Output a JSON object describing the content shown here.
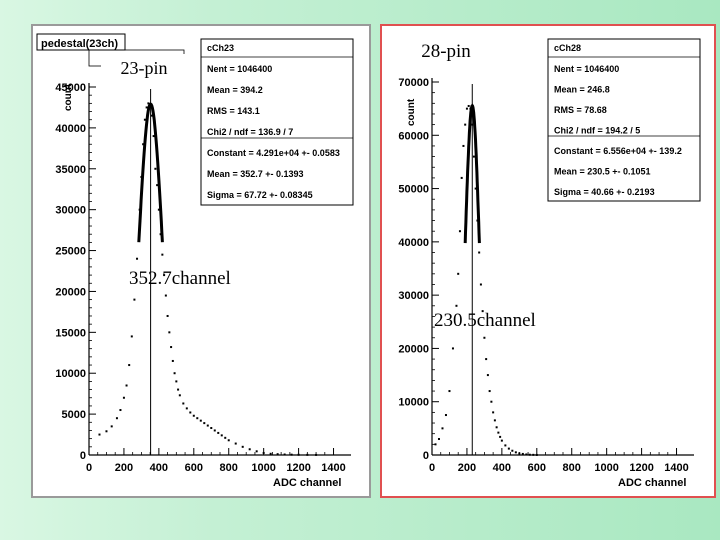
{
  "left": {
    "hist_title": "pedestal(23ch)",
    "count_label": "count",
    "pin_label": "23-pin",
    "peak_label": "352.7channel",
    "stats": {
      "title": "cCh23",
      "rows": [
        "Nent = 1046400",
        "Mean = 394.2",
        "RMS = 143.1",
        "Chi2 / ndf = 136.9 / 7",
        "Constant = 4.291e+04 +- 0.0583",
        "Mean = 352.7 +- 0.1393",
        "Sigma = 67.72 +- 0.08345"
      ]
    }
  },
  "right": {
    "count_label": "count",
    "pin_label": "28-pin",
    "peak_label": "230.5channel",
    "stats": {
      "title": "cCh28",
      "rows": [
        "Nent = 1046400",
        "Mean = 246.8",
        "RMS = 78.68",
        "Chi2 / ndf = 194.2 / 5",
        "Constant = 6.556e+04 +- 139.2",
        "Mean = 230.5 +- 0.1051",
        "Sigma = 40.66 +- 0.2193"
      ]
    }
  },
  "chart_data": [
    {
      "type": "scatter",
      "title": "pedestal(23ch)",
      "xlabel": "ADC channel",
      "ylabel": "count",
      "xlim": [
        0,
        1500
      ],
      "ylim": [
        0,
        45000
      ],
      "x_ticks": [
        0,
        200,
        400,
        600,
        800,
        1000,
        1200,
        1400
      ],
      "x_tick_labels": [
        "0",
        "200",
        "400",
        "600",
        "800",
        "1000",
        "1200",
        "1400"
      ],
      "y_ticks": [
        0,
        5000,
        10000,
        15000,
        20000,
        25000,
        30000,
        35000,
        40000,
        45000
      ],
      "y_tick_labels": [
        "0",
        "5000",
        "10000",
        "15000",
        "20000",
        "25000",
        "30000",
        "35000",
        "40000",
        "45000"
      ],
      "marker_x": 352.7,
      "gauss": {
        "constant": 42910,
        "mean": 352.7,
        "sigma": 67.72
      },
      "series": [
        {
          "x": [
            60,
            100,
            130,
            160,
            180,
            200,
            215,
            230,
            245,
            260,
            275,
            290,
            300,
            310,
            320,
            330,
            340,
            350,
            360,
            370,
            380,
            390,
            400,
            410,
            420,
            430,
            440,
            450,
            460,
            470,
            480,
            490,
            500,
            510,
            520,
            540,
            560,
            580,
            600,
            620,
            640,
            660,
            680,
            700,
            720,
            740,
            760,
            780,
            800,
            840,
            880,
            920,
            960,
            1000,
            1040,
            1080,
            1120,
            1160,
            1200,
            1250,
            1300
          ],
          "y": [
            2500,
            2900,
            3500,
            4500,
            5500,
            7000,
            8500,
            11000,
            14500,
            19000,
            24000,
            30000,
            34000,
            38000,
            41000,
            42500,
            43000,
            42800,
            41500,
            39000,
            35000,
            33000,
            30000,
            27000,
            24500,
            22000,
            19500,
            17000,
            15000,
            13200,
            11500,
            10000,
            9000,
            8000,
            7300,
            6300,
            5700,
            5200,
            4800,
            4500,
            4200,
            3900,
            3600,
            3300,
            3000,
            2700,
            2400,
            2100,
            1800,
            1400,
            1000,
            700,
            450,
            250,
            150,
            100,
            60,
            40,
            30,
            20,
            10
          ]
        }
      ]
    },
    {
      "type": "scatter",
      "title": "",
      "xlabel": "ADC channel",
      "ylabel": "count",
      "xlim": [
        0,
        1500
      ],
      "ylim": [
        0,
        70000
      ],
      "x_ticks": [
        0,
        200,
        400,
        600,
        800,
        1000,
        1200,
        1400
      ],
      "x_tick_labels": [
        "0",
        "200",
        "400",
        "600",
        "800",
        "1000",
        "1200",
        "1400"
      ],
      "y_ticks": [
        0,
        10000,
        20000,
        30000,
        40000,
        50000,
        60000,
        70000
      ],
      "y_tick_labels": [
        "0",
        "10000",
        "20000",
        "30000",
        "40000",
        "50000",
        "60000",
        "70000"
      ],
      "marker_x": 230.5,
      "gauss": {
        "constant": 65560,
        "mean": 230.5,
        "sigma": 40.66
      },
      "series": [
        {
          "x": [
            20,
            40,
            60,
            80,
            100,
            120,
            140,
            150,
            160,
            170,
            180,
            190,
            200,
            210,
            220,
            230,
            240,
            250,
            260,
            270,
            280,
            290,
            300,
            310,
            320,
            330,
            340,
            350,
            360,
            370,
            380,
            390,
            400,
            420,
            440,
            460,
            480,
            500,
            520,
            540,
            560,
            580,
            600
          ],
          "y": [
            2000,
            3000,
            5000,
            7500,
            12000,
            20000,
            28000,
            34000,
            42000,
            52000,
            58000,
            62000,
            65000,
            65500,
            65000,
            62000,
            56000,
            50000,
            44000,
            38000,
            32000,
            27000,
            22000,
            18000,
            15000,
            12000,
            10000,
            8000,
            6500,
            5200,
            4200,
            3400,
            2700,
            1800,
            1200,
            800,
            500,
            300,
            200,
            100,
            50,
            30,
            10
          ]
        }
      ]
    }
  ]
}
